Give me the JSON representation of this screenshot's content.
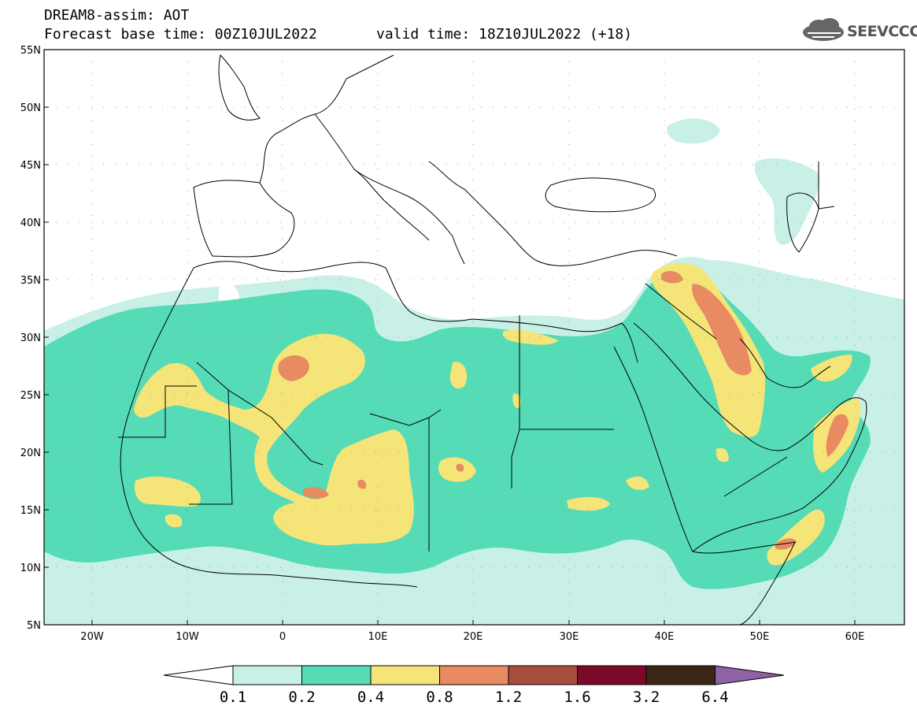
{
  "header": {
    "model_line": "DREAM8-assim: AOT",
    "base_line": "Forecast base time: 00Z10JUL2022",
    "valid_line": "valid time: 18Z10JUL2022 (+18)"
  },
  "logo": {
    "text": "SEEVCCC",
    "icon": "cloud-icon"
  },
  "axes": {
    "lat_labels": [
      "55N",
      "50N",
      "45N",
      "40N",
      "35N",
      "30N",
      "25N",
      "20N",
      "15N",
      "10N",
      "5N"
    ],
    "lon_labels": [
      "20W",
      "10W",
      "0",
      "10E",
      "20E",
      "30E",
      "40E",
      "50E",
      "60E"
    ]
  },
  "colorbar": {
    "labels": [
      "0.1",
      "0.2",
      "0.4",
      "0.8",
      "1.2",
      "1.6",
      "3.2",
      "6.4"
    ],
    "colors": [
      "#ffffff",
      "#c8f0e6",
      "#55dbb6",
      "#f5e578",
      "#e88a62",
      "#a84c3e",
      "#7a0a28",
      "#3c2616",
      "#8f62a6"
    ]
  },
  "field_colors": {
    "level_1": "#c8f0e6",
    "level_2": "#55dbb6",
    "level_3": "#f5e578",
    "level_4": "#e88a62",
    "level_5": "#c96650"
  }
}
